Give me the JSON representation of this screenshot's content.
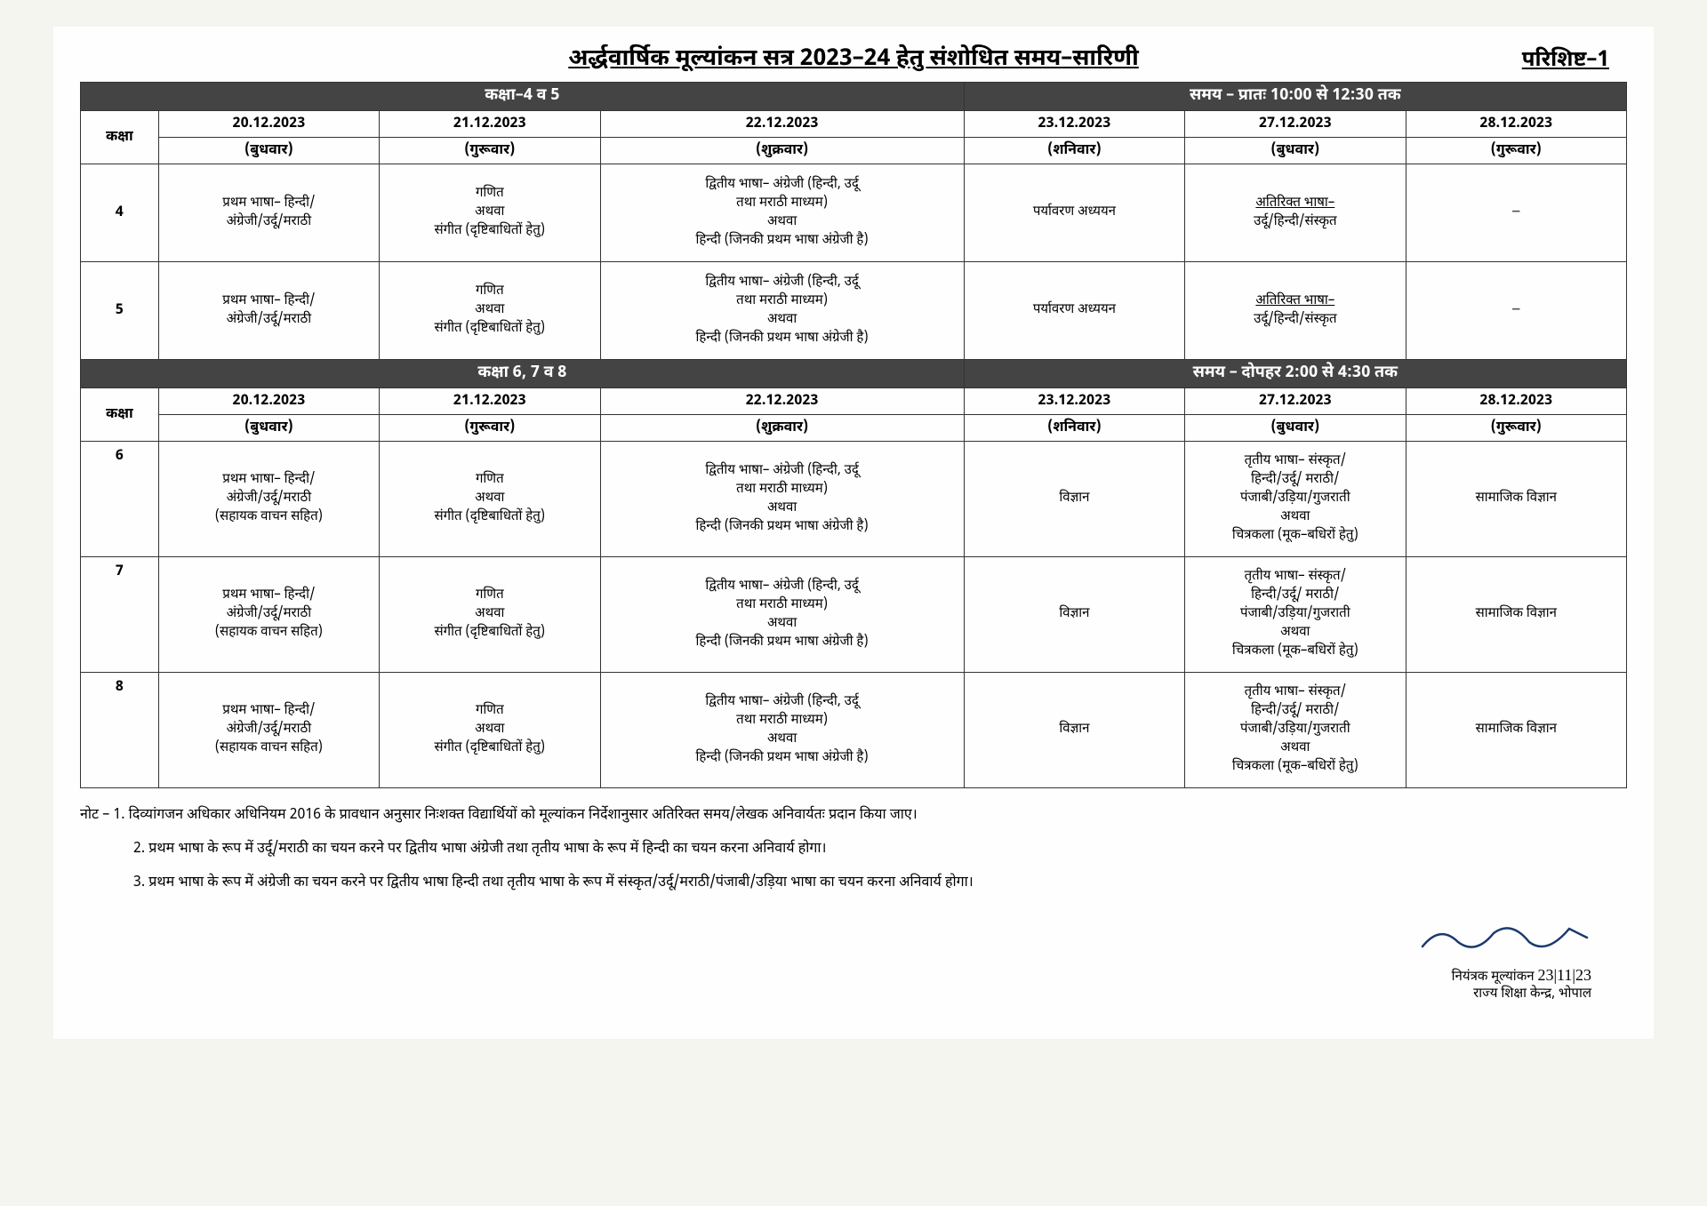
{
  "title": "अर्द्धवार्षिक मूल्यांकन सत्र 2023–24 हेतु संशोधित समय–सारिणी",
  "appendix": "परिशिष्ट–1",
  "section1": {
    "left": "कक्षा–4 व 5",
    "right": "समय – प्रातः 10:00 से 12:30 तक"
  },
  "headers": {
    "class_label": "कक्षा",
    "dates": [
      "20.12.2023",
      "21.12.2023",
      "22.12.2023",
      "23.12.2023",
      "27.12.2023",
      "28.12.2023"
    ],
    "days": [
      "(बुधवार)",
      "(गुरूवार)",
      "(शुक्रवार)",
      "(शनिवार)",
      "(बुधवार)",
      "(गुरूवार)"
    ]
  },
  "rows1": {
    "class4": {
      "num": "4",
      "c1": "प्रथम भाषा– हिन्दी/\nअंग्रेजी/उर्दू/मराठी",
      "c2": "गणित\nअथवा\nसंगीत (दृष्टिबाधितों हेतु)",
      "c3": "द्वितीय भाषा– अंग्रेजी (हिन्दी, उर्दू\nतथा मराठी माध्यम)\nअथवा\nहिन्दी (जिनकी प्रथम भाषा अंग्रेजी है)",
      "c4": "पर्यावरण अध्ययन",
      "c5_u": "अतिरिक्त भाषा–",
      "c5": "उर्दू/हिन्दी/संस्कृत",
      "c6": "–"
    },
    "class5": {
      "num": "5",
      "c1": "प्रथम भाषा– हिन्दी/\nअंग्रेजी/उर्दू/मराठी",
      "c2": "गणित\nअथवा\nसंगीत (दृष्टिबाधितों हेतु)",
      "c3": "द्वितीय भाषा– अंग्रेजी (हिन्दी, उर्दू\nतथा मराठी माध्यम)\nअथवा\nहिन्दी (जिनकी प्रथम भाषा अंग्रेजी है)",
      "c4": "पर्यावरण अध्ययन",
      "c5_u": "अतिरिक्त भाषा–",
      "c5": "उर्दू/हिन्दी/संस्कृत",
      "c6": "–"
    }
  },
  "section2": {
    "left": "कक्षा 6, 7 व 8",
    "right": "समय – दोपहर 2:00 से 4:30 तक"
  },
  "rows2": {
    "class6": {
      "num": "6",
      "c1": "प्रथम भाषा– हिन्दी/\nअंग्रेजी/उर्दू/मराठी\n(सहायक वाचन सहित)",
      "c2": "गणित\nअथवा\nसंगीत (दृष्टिबाधितों हेतु)",
      "c3": "द्वितीय भाषा– अंग्रेजी (हिन्दी, उर्दू\nतथा मराठी माध्यम)\nअथवा\nहिन्दी (जिनकी प्रथम भाषा अंग्रेजी है)",
      "c4": "विज्ञान",
      "c5": "तृतीय भाषा– संस्कृत/\nहिन्दी/उर्दू/ मराठी/\nपंजाबी/उड़िया/गुजराती\nअथवा\nचित्रकला (मूक–बधिरों हेतु)",
      "c6": "सामाजिक विज्ञान"
    },
    "class7": {
      "num": "7",
      "c1": "प्रथम भाषा– हिन्दी/\nअंग्रेजी/उर्दू/मराठी\n(सहायक वाचन सहित)",
      "c2": "गणित\nअथवा\nसंगीत (दृष्टिबाधितों हेतु)",
      "c3": "द्वितीय भाषा– अंग्रेजी (हिन्दी, उर्दू\nतथा मराठी माध्यम)\nअथवा\nहिन्दी (जिनकी प्रथम भाषा अंग्रेजी है)",
      "c4": "विज्ञान",
      "c5": "तृतीय भाषा– संस्कृत/\nहिन्दी/उर्दू/ मराठी/\nपंजाबी/उड़िया/गुजराती\nअथवा\nचित्रकला (मूक–बधिरों हेतु)",
      "c6": "सामाजिक विज्ञान"
    },
    "class8": {
      "num": "8",
      "c1": "प्रथम भाषा– हिन्दी/\nअंग्रेजी/उर्दू/मराठी\n(सहायक वाचन सहित)",
      "c2": "गणित\nअथवा\nसंगीत (दृष्टिबाधितों हेतु)",
      "c3": "द्वितीय भाषा– अंग्रेजी (हिन्दी, उर्दू\nतथा मराठी माध्यम)\nअथवा\nहिन्दी (जिनकी प्रथम भाषा अंग्रेजी है)",
      "c4": "विज्ञान",
      "c5": "तृतीय भाषा– संस्कृत/\nहिन्दी/उर्दू/ मराठी/\nपंजाबी/उड़िया/गुजराती\nअथवा\nचित्रकला (मूक–बधिरों हेतु)",
      "c6": "सामाजिक विज्ञान"
    }
  },
  "notes": {
    "n1": "नोट – 1. दिव्यांगजन अधिकार अधिनियम 2016 के प्रावधान अनुसार निःशक्त विद्यार्थियों को मूल्यांकन निर्देशानुसार अतिरिक्त समय/लेखक अनिवार्यतः प्रदान किया जाए।",
    "n2": "2. प्रथम भाषा के रूप में उर्दू/मराठी का चयन करने पर द्वितीय भाषा अंग्रेजी तथा तृतीय भाषा के रूप में हिन्दी का चयन करना अनिवार्य होगा।",
    "n3": "3. प्रथम भाषा के रूप में अंग्रेजी का चयन करने पर द्वितीय भाषा हिन्दी तथा तृतीय भाषा के रूप में संस्कृत/उर्दू/मराठी/पंजाबी/उड़िया भाषा का चयन करना अनिवार्य होगा।"
  },
  "signature": {
    "line1": "नियंत्रक मूल्यांकन",
    "date": "23|11|23",
    "line2": "राज्य शिक्षा केन्द्र, भोपाल"
  },
  "colors": {
    "section_bg": "#444444",
    "section_fg": "#ffffff",
    "border": "#333333",
    "page_bg": "#fefefe",
    "body_bg": "#f5f5f0"
  }
}
